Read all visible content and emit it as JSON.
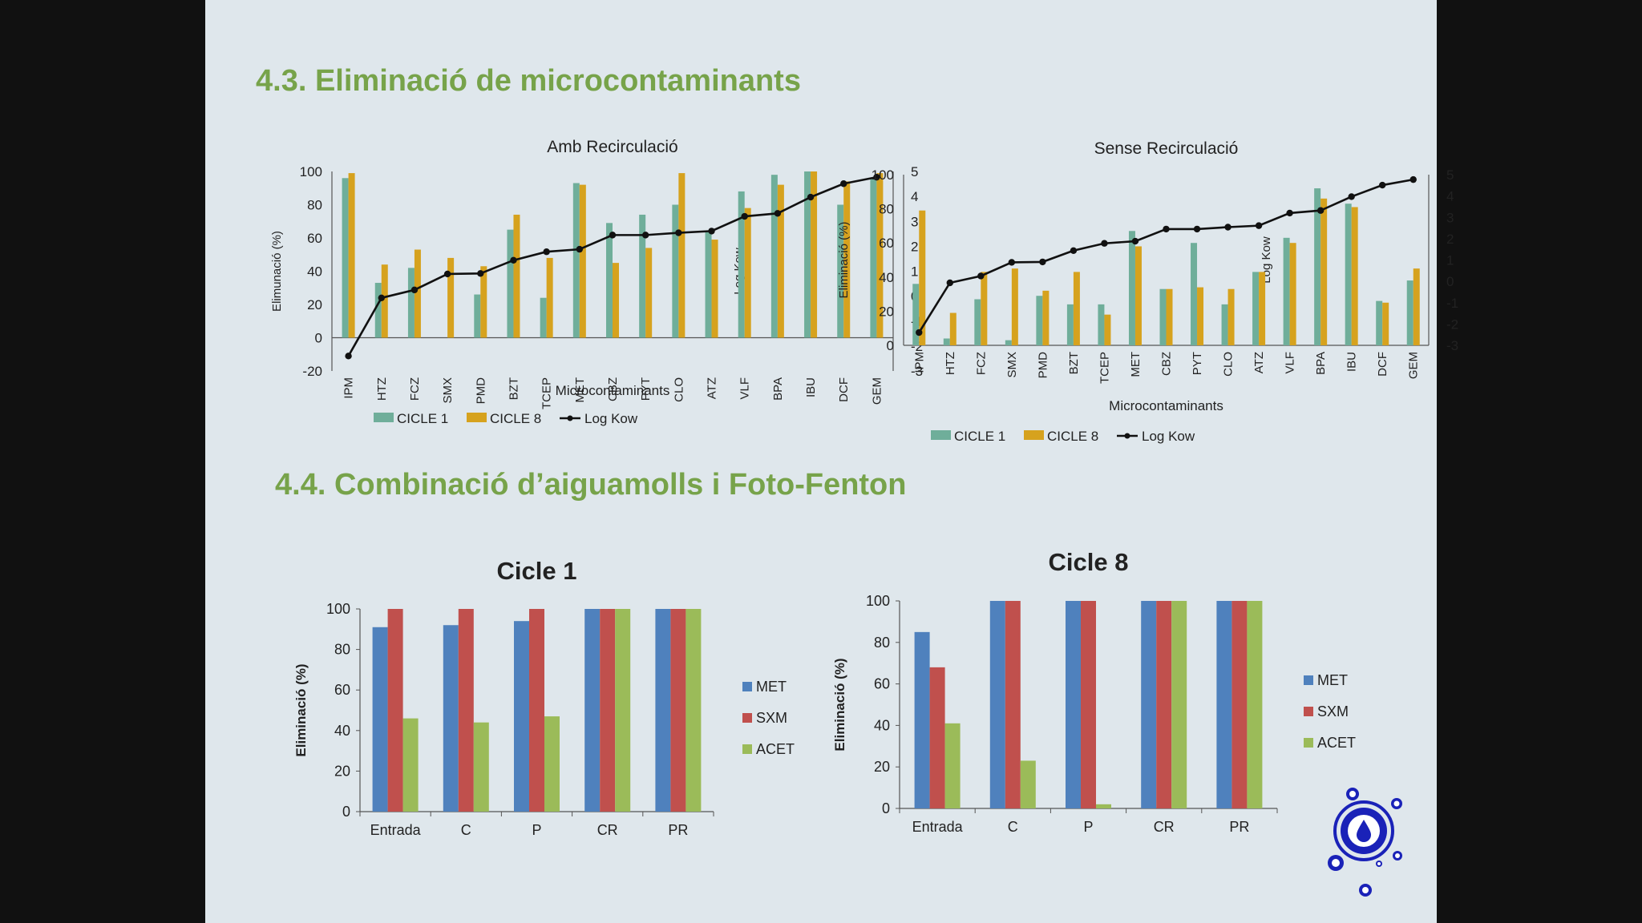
{
  "sections": {
    "s43": "4.3. Eliminació de microcontaminants",
    "s44": "4.4. Combinació d’aiguamolls i Foto-Fenton"
  },
  "colors": {
    "green_title": "#77a34a",
    "cicle1": "#6fae9a",
    "cicle8": "#d6a21e",
    "logkow": "#111111",
    "met": "#4f81bd",
    "sxm": "#c0504d",
    "acet": "#9bbb59",
    "logo": "#1a22b8"
  },
  "logo_icon": "water-drop-logo-icon",
  "chart_data": [
    {
      "type": "bar",
      "title": "Amb Recirculació",
      "xlabel": "Microcontaminants",
      "ylabel": "Elimunació (%)",
      "y2label": "Log Kow",
      "ylim": [
        -20,
        100
      ],
      "yticks": [
        -20,
        0,
        20,
        40,
        60,
        80,
        100
      ],
      "y2lim": [
        -3,
        5
      ],
      "y2ticks": [
        -3,
        -2,
        -1,
        0,
        1,
        2,
        3,
        4,
        5
      ],
      "categories": [
        "IPM",
        "HTZ",
        "FCZ",
        "SMX",
        "PMD",
        "BZT",
        "TCEP",
        "MET",
        "CBZ",
        "PYT",
        "CLO",
        "ATZ",
        "VLF",
        "BPA",
        "IBU",
        "DCF",
        "GEM"
      ],
      "series": [
        {
          "name": "CICLE 1",
          "kind": "bar",
          "values": [
            96,
            33,
            42,
            0,
            26,
            65,
            24,
            93,
            69,
            74,
            80,
            64,
            88,
            98,
            100,
            80,
            96
          ]
        },
        {
          "name": "CICLE 8",
          "kind": "bar",
          "values": [
            99,
            44,
            53,
            48,
            43,
            74,
            48,
            92,
            45,
            54,
            99,
            59,
            78,
            92,
            100,
            94,
            99
          ]
        },
        {
          "name": "Log Kow",
          "kind": "line",
          "axis": "y2",
          "values": [
            -2.4,
            -0.07,
            0.25,
            0.89,
            0.91,
            1.44,
            1.78,
            1.88,
            2.45,
            2.45,
            2.54,
            2.61,
            3.2,
            3.32,
            3.97,
            4.51,
            4.77
          ]
        }
      ],
      "legend": "bottom",
      "grid": false
    },
    {
      "type": "bar",
      "title": "Sense Recirculació",
      "xlabel": "Microcontaminants",
      "ylabel": "Eliminació (%)",
      "y2label": "Log Kow",
      "ylim": [
        0,
        100
      ],
      "yticks": [
        0,
        20,
        40,
        60,
        80,
        100
      ],
      "y2lim": [
        -3,
        5
      ],
      "y2ticks": [
        -3,
        -2,
        -1,
        0,
        1,
        2,
        3,
        4,
        5
      ],
      "categories": [
        "IPM",
        "HTZ",
        "FCZ",
        "SMX",
        "PMD",
        "BZT",
        "TCEP",
        "MET",
        "CBZ",
        "PYT",
        "CLO",
        "ATZ",
        "VLF",
        "BPA",
        "IBU",
        "DCF",
        "GEM"
      ],
      "series": [
        {
          "name": "CICLE 1",
          "kind": "bar",
          "values": [
            36,
            4,
            27,
            3,
            29,
            24,
            24,
            67,
            33,
            60,
            24,
            43,
            63,
            92,
            83,
            26,
            38
          ]
        },
        {
          "name": "CICLE 8",
          "kind": "bar",
          "values": [
            79,
            19,
            43,
            45,
            32,
            43,
            18,
            58,
            33,
            34,
            33,
            43,
            60,
            86,
            81,
            25,
            45
          ]
        },
        {
          "name": "Log Kow",
          "kind": "line",
          "axis": "y2",
          "values": [
            -2.4,
            -0.07,
            0.25,
            0.89,
            0.91,
            1.44,
            1.78,
            1.88,
            2.45,
            2.45,
            2.54,
            2.61,
            3.2,
            3.32,
            3.97,
            4.51,
            4.77
          ]
        }
      ],
      "legend": "bottom",
      "grid": false
    },
    {
      "type": "bar",
      "title": "Cicle 1",
      "xlabel": "",
      "ylabel": "Eliminació (%)",
      "ylim": [
        0,
        100
      ],
      "yticks": [
        0,
        20,
        40,
        60,
        80,
        100
      ],
      "categories": [
        "Entrada",
        "C",
        "P",
        "CR",
        "PR"
      ],
      "series": [
        {
          "name": "MET",
          "values": [
            91,
            92,
            94,
            100,
            100
          ]
        },
        {
          "name": "SXM",
          "values": [
            100,
            100,
            100,
            100,
            100
          ]
        },
        {
          "name": "ACET",
          "values": [
            46,
            44,
            47,
            100,
            100
          ]
        }
      ],
      "legend": "right",
      "grid": false
    },
    {
      "type": "bar",
      "title": "Cicle 8",
      "xlabel": "",
      "ylabel": "Eliminació (%)",
      "ylim": [
        0,
        100
      ],
      "yticks": [
        0,
        20,
        40,
        60,
        80,
        100
      ],
      "categories": [
        "Entrada",
        "C",
        "P",
        "CR",
        "PR"
      ],
      "series": [
        {
          "name": "MET",
          "values": [
            85,
            100,
            100,
            100,
            100
          ]
        },
        {
          "name": "SXM",
          "values": [
            68,
            100,
            100,
            100,
            100
          ]
        },
        {
          "name": "ACET",
          "values": [
            41,
            23,
            2,
            100,
            100
          ]
        }
      ],
      "legend": "right",
      "grid": false
    }
  ]
}
